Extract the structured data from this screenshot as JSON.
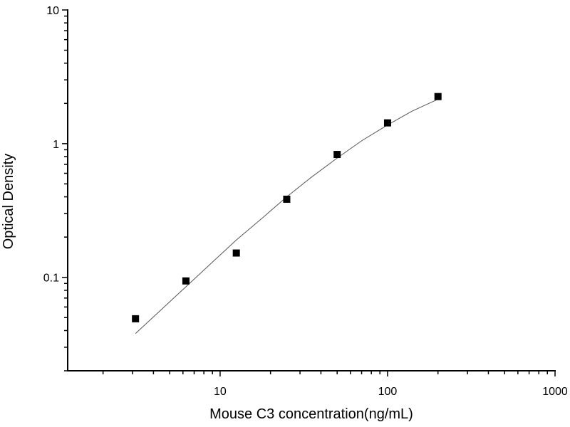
{
  "chart_data": {
    "type": "scatter",
    "title": "",
    "xlabel": "Mouse C3 concentration(ng/mL)",
    "ylabel": "Optical Density",
    "x_scale": "log",
    "y_scale": "log",
    "xlim": [
      1.23,
      1000
    ],
    "ylim": [
      0.02,
      10
    ],
    "x_ticks": [
      {
        "value": 10,
        "label": "10"
      },
      {
        "value": 100,
        "label": "100"
      },
      {
        "value": 1000,
        "label": "1000"
      }
    ],
    "y_ticks": [
      {
        "value": 0.1,
        "label": "0.1"
      },
      {
        "value": 1,
        "label": "1"
      },
      {
        "value": 10,
        "label": "10"
      }
    ],
    "grid": false,
    "legend": "none",
    "marker_color": "#000000",
    "curve_color": "#555555",
    "series": [
      {
        "type": "scatter",
        "marker": "square",
        "x": [
          3.125,
          6.25,
          12.5,
          25,
          50,
          100,
          200
        ],
        "y": [
          0.049,
          0.094,
          0.152,
          0.384,
          0.83,
          1.43,
          2.25
        ]
      },
      {
        "type": "line",
        "x": [
          3.125,
          4.5,
          6.25,
          9,
          12.5,
          18,
          25,
          35,
          50,
          70,
          100,
          140,
          200
        ],
        "y": [
          0.038,
          0.058,
          0.085,
          0.13,
          0.19,
          0.28,
          0.4,
          0.56,
          0.78,
          1.05,
          1.38,
          1.75,
          2.15
        ]
      }
    ]
  }
}
